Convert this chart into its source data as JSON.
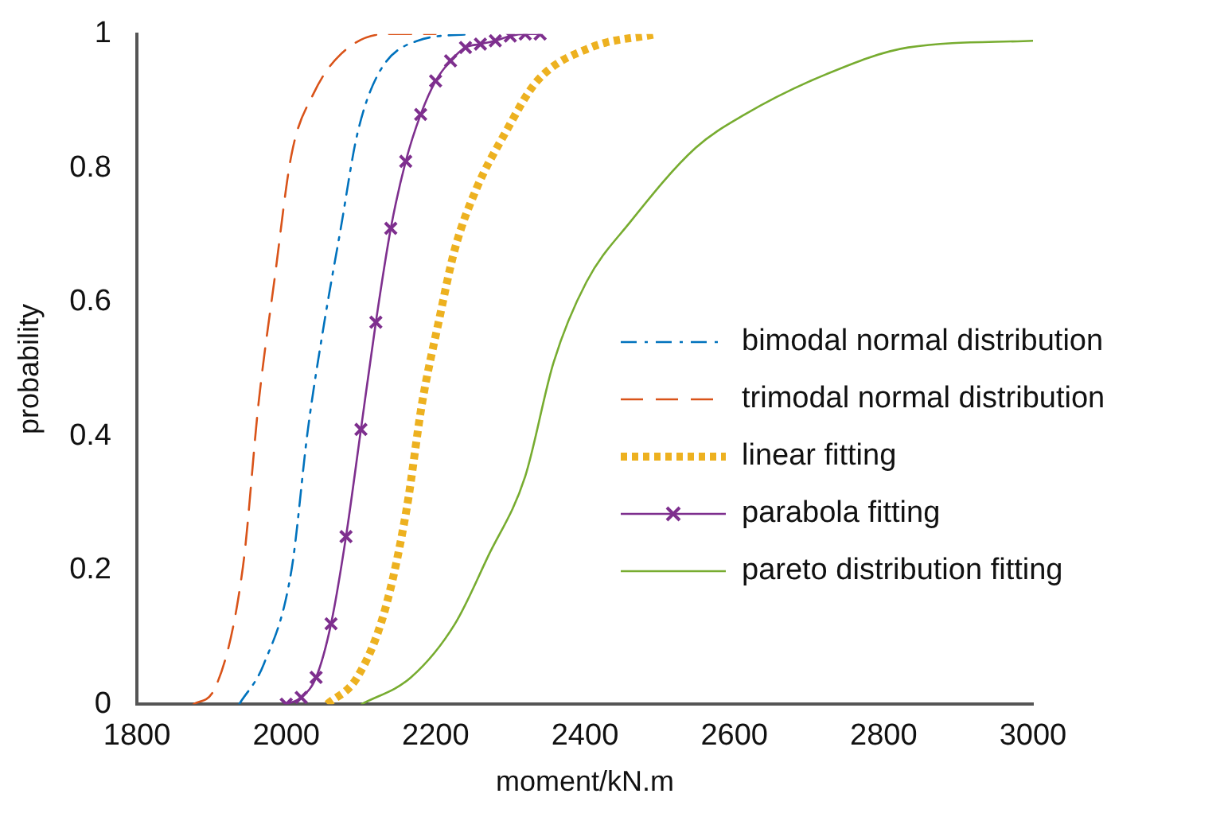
{
  "chart_data": {
    "type": "line",
    "xlabel": "moment/kN.m",
    "ylabel": "probability",
    "xlim": [
      1800,
      3000
    ],
    "xticks": [
      1800,
      2000,
      2200,
      2400,
      2600,
      2800,
      3000
    ],
    "ylim": [
      0,
      1
    ],
    "yticks": [
      0,
      0.2,
      0.4,
      0.6,
      0.8,
      1
    ],
    "grid": false,
    "legend": "right",
    "series": [
      {
        "name": "bimodal normal distribution",
        "color": "#0072bd",
        "line_style": "dashdot",
        "marker": "none",
        "x": [
          1937,
          1970,
          2007,
          2029,
          2051,
          2073,
          2095,
          2123,
          2176,
          2248
        ],
        "values": [
          0,
          0.06,
          0.2,
          0.41,
          0.57,
          0.71,
          0.85,
          0.94,
          0.99,
          1.0
        ]
      },
      {
        "name": "trimodal normal distribution",
        "color": "#d95319",
        "line_style": "dashed",
        "marker": "none",
        "x": [
          1876,
          1905,
          1942,
          1963,
          1985,
          2007,
          2036,
          2073,
          2132,
          2200
        ],
        "values": [
          0,
          0.025,
          0.205,
          0.45,
          0.64,
          0.82,
          0.91,
          0.97,
          1.0,
          1.0
        ]
      },
      {
        "name": "linear fitting",
        "color": "#edb120",
        "line_style": "dotted",
        "marker": "none",
        "x": [
          2055,
          2095,
          2132,
          2161,
          2182,
          2204,
          2226,
          2255,
          2292,
          2336,
          2408,
          2496
        ],
        "values": [
          0,
          0.04,
          0.14,
          0.29,
          0.45,
          0.57,
          0.68,
          0.77,
          0.85,
          0.93,
          0.98,
          1.0
        ]
      },
      {
        "name": "parabola fitting",
        "color": "#7e2f8e",
        "line_style": "solid",
        "marker": "cross",
        "x": [
          2000,
          2020,
          2040,
          2060,
          2080,
          2100,
          2120,
          2140,
          2160,
          2180,
          2200,
          2220,
          2240,
          2260,
          2280,
          2300,
          2320,
          2340
        ],
        "values": [
          0,
          0.01,
          0.04,
          0.12,
          0.25,
          0.41,
          0.57,
          0.71,
          0.81,
          0.88,
          0.93,
          0.96,
          0.98,
          0.985,
          0.99,
          0.997,
          1.0,
          1.0
        ]
      },
      {
        "name": "pareto distribution fitting",
        "color": "#77ac30",
        "line_style": "solid",
        "marker": "none",
        "x": [
          2101,
          2167,
          2226,
          2270,
          2320,
          2358,
          2402,
          2461,
          2548,
          2614,
          2723,
          2833,
          3000
        ],
        "values": [
          0,
          0.04,
          0.12,
          0.22,
          0.34,
          0.51,
          0.63,
          0.72,
          0.83,
          0.88,
          0.94,
          0.98,
          0.99
        ]
      }
    ]
  }
}
